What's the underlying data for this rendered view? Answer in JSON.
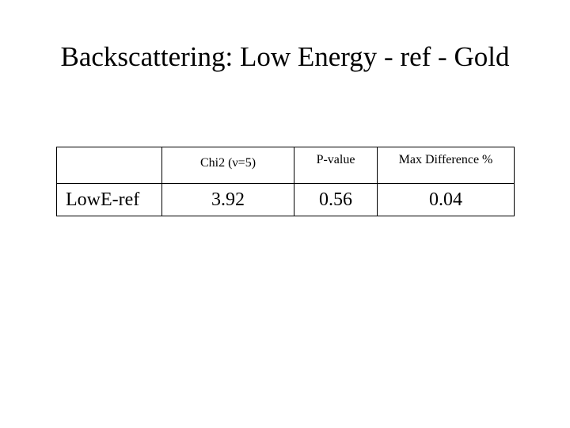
{
  "slide": {
    "title": "Backscattering: Low Energy - ref - Gold"
  },
  "table": {
    "headers": [
      "",
      "Chi2 (ν=5)",
      "P-value",
      "Max Difference %"
    ],
    "rows": [
      {
        "label": "LowE-ref",
        "chi2": "3.92",
        "p_value": "0.56",
        "max_difference": "0.04"
      }
    ]
  }
}
